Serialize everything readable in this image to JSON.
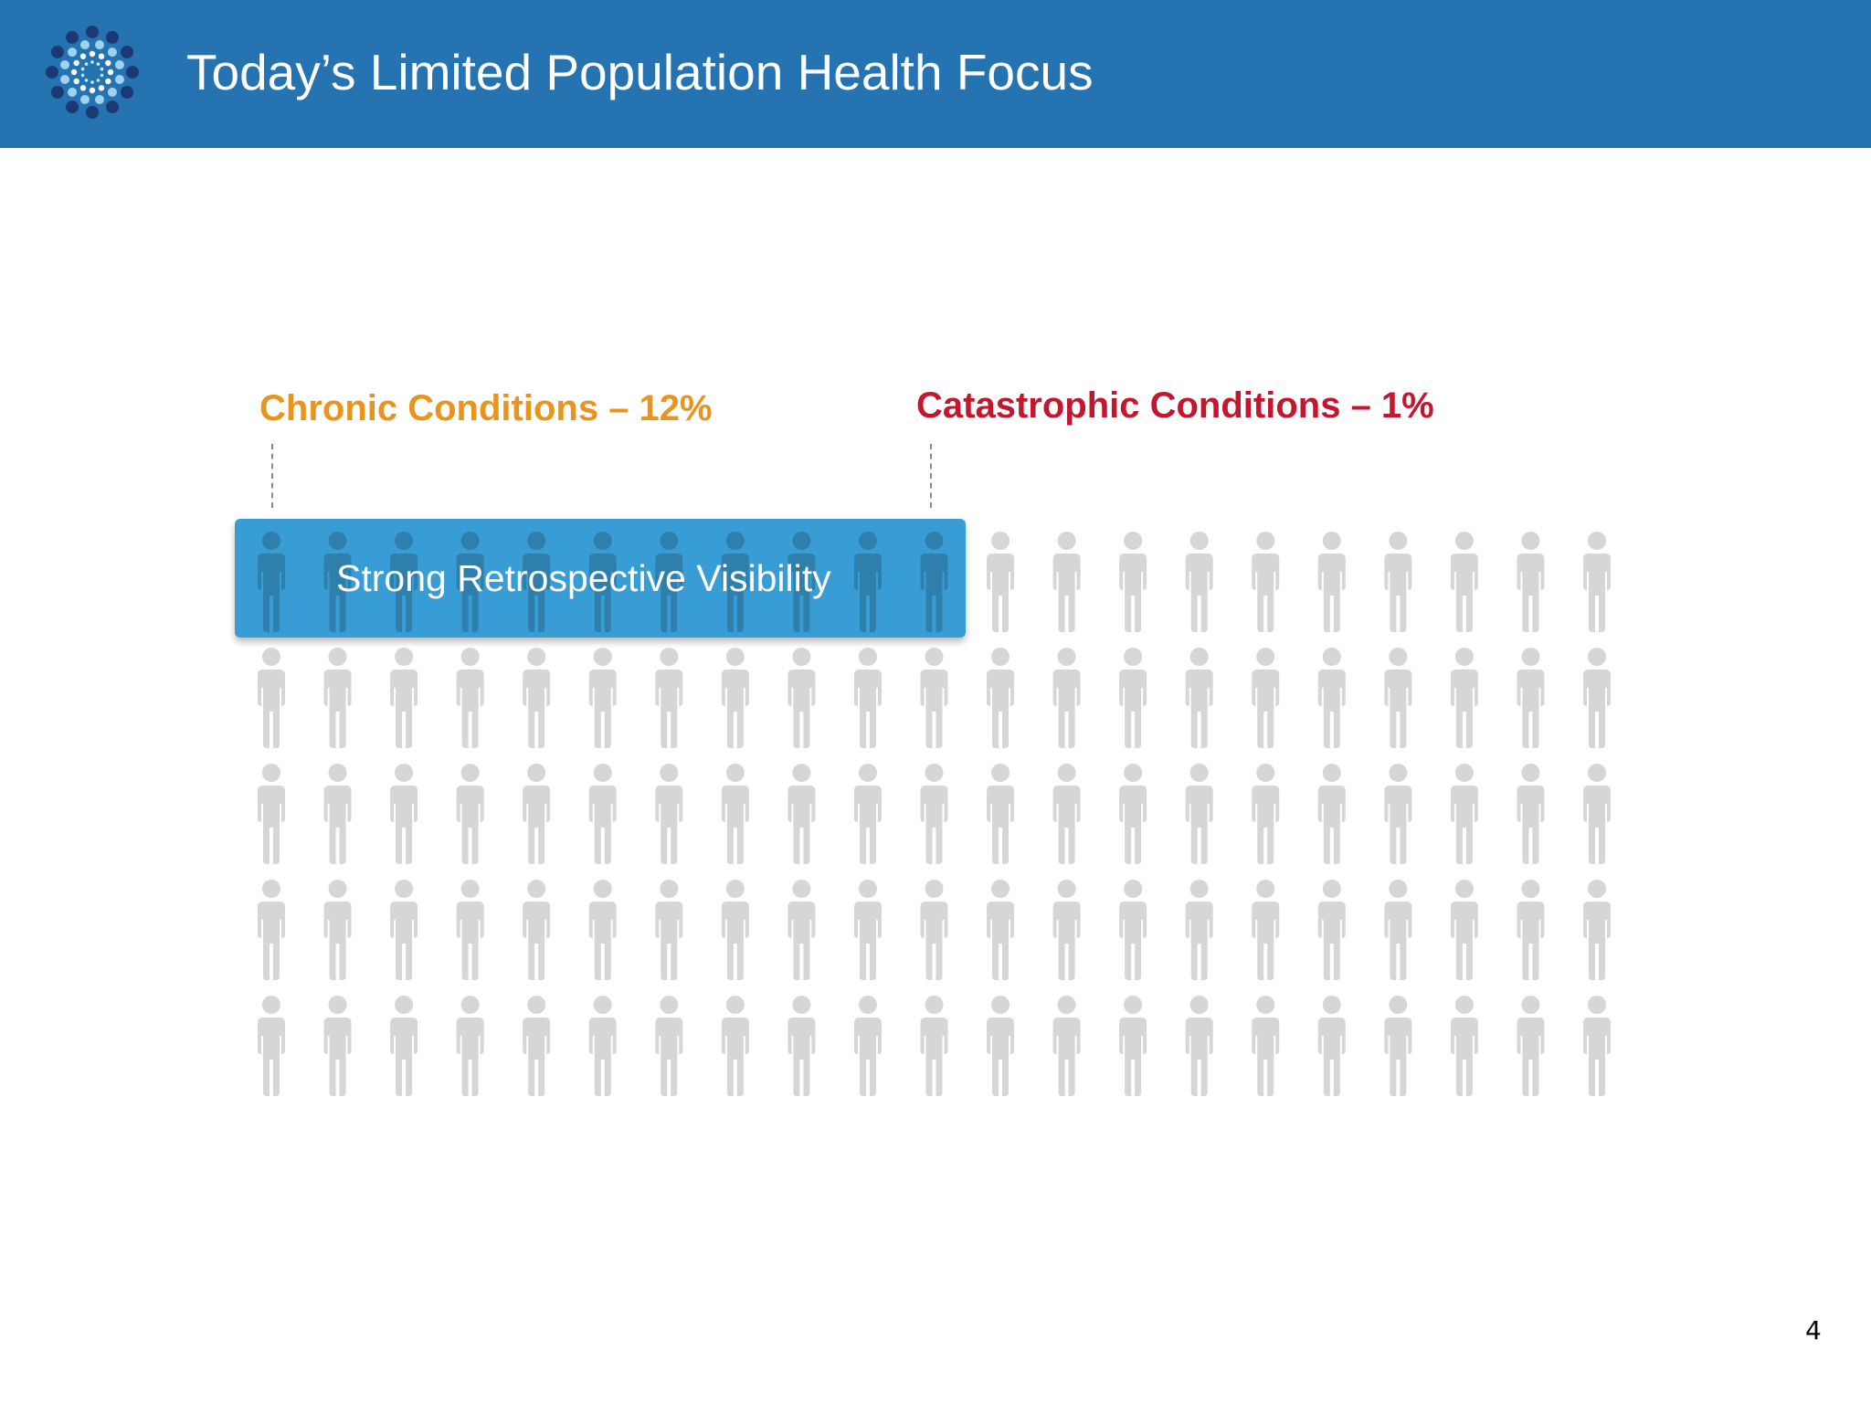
{
  "header": {
    "title": "Today’s Limited Population Health Focus",
    "background_color": "#2573b1",
    "logo_icon": "dotted-sunburst-logo-icon"
  },
  "labels": {
    "chronic": {
      "text": "Chronic Conditions – 12%",
      "color": "#e8951f"
    },
    "catastrophic": {
      "text": "Catastrophic Conditions – 1%",
      "color": "#c3172f"
    }
  },
  "highlight": {
    "text": "Strong Retrospective Visibility",
    "color": "#2996d2"
  },
  "people_grid": {
    "icon": "person-icon",
    "rows": 5,
    "columns": 21,
    "person_color": "#d6d5d7",
    "highlighted_person_color": "#2f7fad",
    "highlighted_row_count": 1,
    "highlighted_column_count": 11
  },
  "footer": {
    "page_number": "4"
  }
}
